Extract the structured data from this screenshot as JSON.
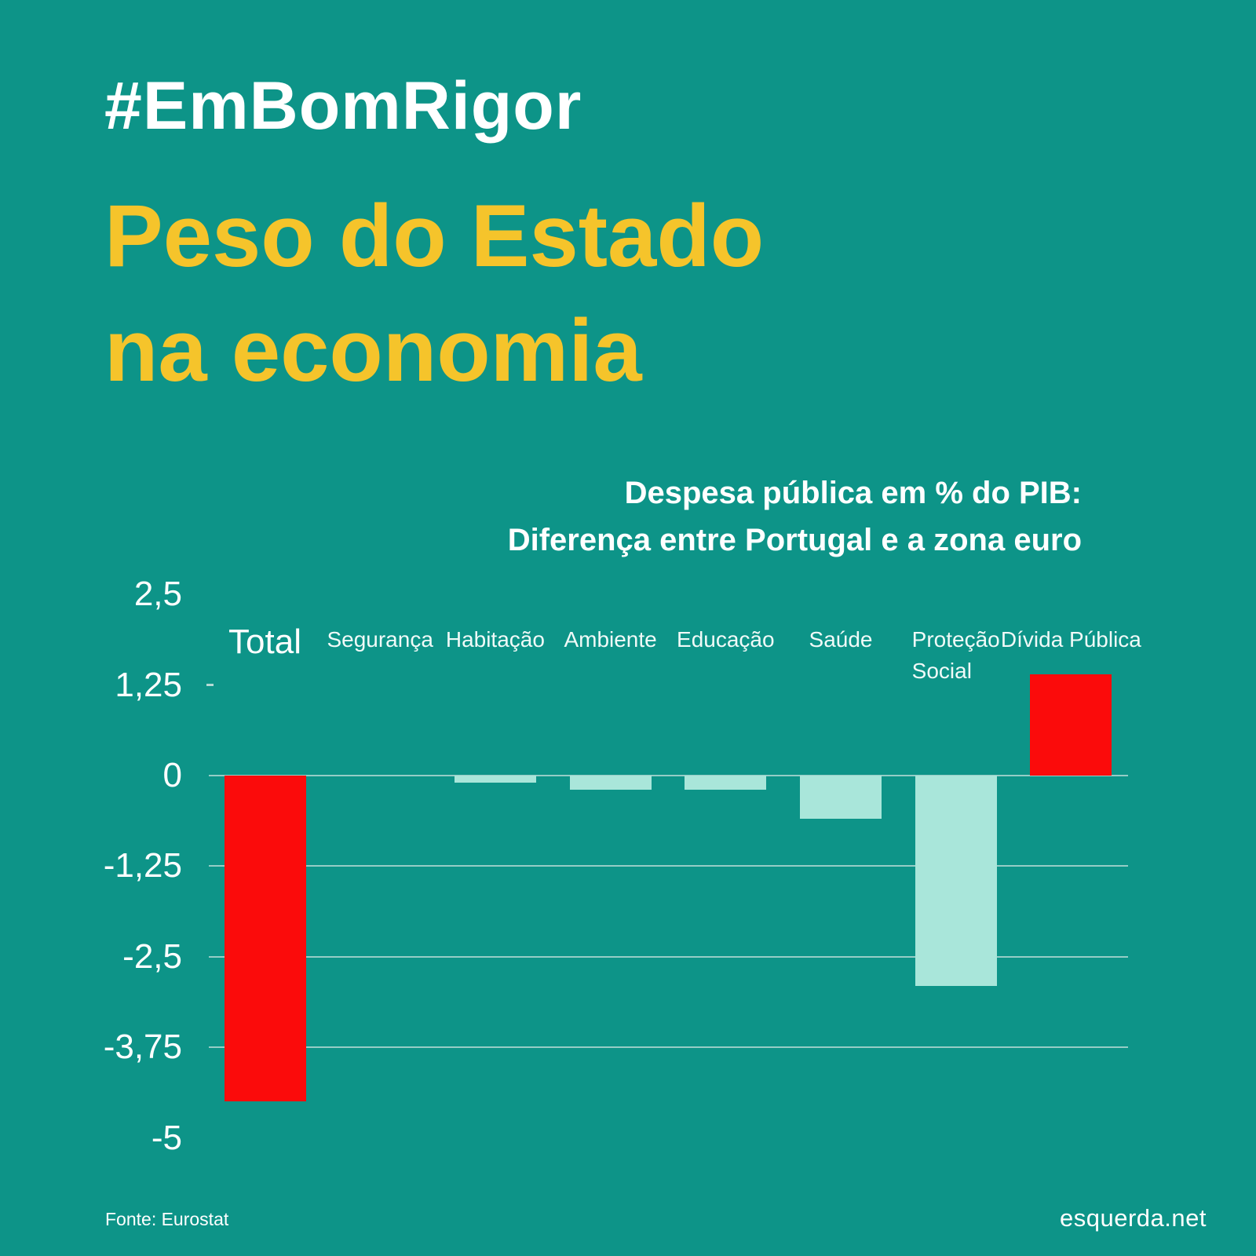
{
  "header": {
    "hashtag": "#EmBomRigor",
    "title": "Peso do Estado\nna economia"
  },
  "chart_data": {
    "type": "bar",
    "title": "Despesa pública em % do PIB:\nDiferença entre Portugal e a zona euro",
    "categories": [
      "Total",
      "Segurança",
      "Habitação",
      "Ambiente",
      "Educação",
      "Saúde",
      "Proteção\nSocial",
      "Dívida Pública"
    ],
    "values": [
      -4.5,
      0,
      -0.1,
      -0.2,
      -0.2,
      -0.6,
      -2.9,
      1.4
    ],
    "bar_colors": [
      "#FB0B0B",
      "#A9E6DA",
      "#A9E6DA",
      "#A9E6DA",
      "#A9E6DA",
      "#A9E6DA",
      "#A9E6DA",
      "#FB0B0B"
    ],
    "emphasized_category": "Total",
    "xlabel": "",
    "ylabel": "",
    "ylim": [
      -5,
      2.5
    ],
    "y_ticks": [
      {
        "label": "2,5",
        "value": 2.5,
        "line": false,
        "dash": false
      },
      {
        "label": "1,25",
        "value": 1.25,
        "line": false,
        "dash": true
      },
      {
        "label": "0",
        "value": 0,
        "line": true,
        "dash": false
      },
      {
        "label": "-1,25",
        "value": -1.25,
        "line": true,
        "dash": false
      },
      {
        "label": "-2,5",
        "value": -2.5,
        "line": true,
        "dash": false
      },
      {
        "label": "-3,75",
        "value": -3.75,
        "line": true,
        "dash": false
      },
      {
        "label": "-5",
        "value": -5,
        "line": false,
        "dash": false
      }
    ],
    "grid": "horizontal",
    "legend": "none",
    "colors": {
      "background": "#0D9488",
      "negative_highlight_red": "#FB0B0B",
      "negative_mint": "#A9E6DA",
      "accent_yellow": "#F5C42B",
      "text_white": "#FFFFFF"
    }
  },
  "footer": {
    "source": "Fonte: Eurostat",
    "site": "esquerda.net"
  }
}
